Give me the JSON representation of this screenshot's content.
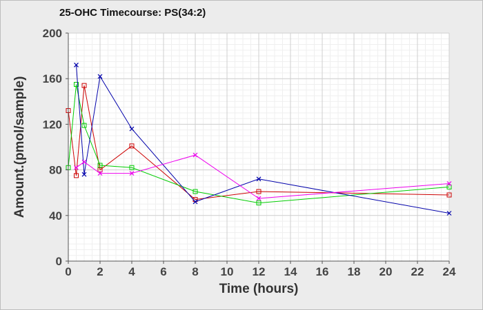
{
  "chart_data": {
    "type": "line",
    "title": "25-OHC Timecourse: PS(34:2)",
    "xlabel": "Time (hours)",
    "ylabel": "Amount.(pmol/sample)",
    "xlim": [
      0,
      24
    ],
    "ylim": [
      0,
      200
    ],
    "x_ticks": [
      0,
      2,
      4,
      6,
      8,
      10,
      12,
      14,
      16,
      18,
      20,
      22,
      24
    ],
    "y_ticks": [
      0,
      40,
      80,
      120,
      160,
      200
    ],
    "grid": true,
    "series": [
      {
        "color": "#cc0000",
        "marker": "square",
        "x": [
          0,
          0.5,
          1,
          2,
          4,
          8,
          12,
          24
        ],
        "y": [
          132,
          75,
          154,
          80,
          101,
          54,
          61,
          58
        ]
      },
      {
        "color": "#00cc00",
        "marker": "square",
        "x": [
          0,
          0.5,
          1,
          2,
          4,
          8,
          12,
          24
        ],
        "y": [
          82,
          155,
          119,
          84,
          82,
          61,
          51,
          65
        ]
      },
      {
        "color": "#0000aa",
        "marker": "x",
        "x": [
          0.5,
          1,
          2,
          4,
          8,
          12,
          24
        ],
        "y": [
          172,
          76,
          162,
          116,
          52,
          72,
          42
        ]
      },
      {
        "color": "#ee00ee",
        "marker": "x",
        "x": [
          0.5,
          1,
          2,
          4,
          8,
          12,
          24
        ],
        "y": [
          82,
          87,
          77,
          77,
          93,
          55,
          68
        ]
      }
    ]
  }
}
